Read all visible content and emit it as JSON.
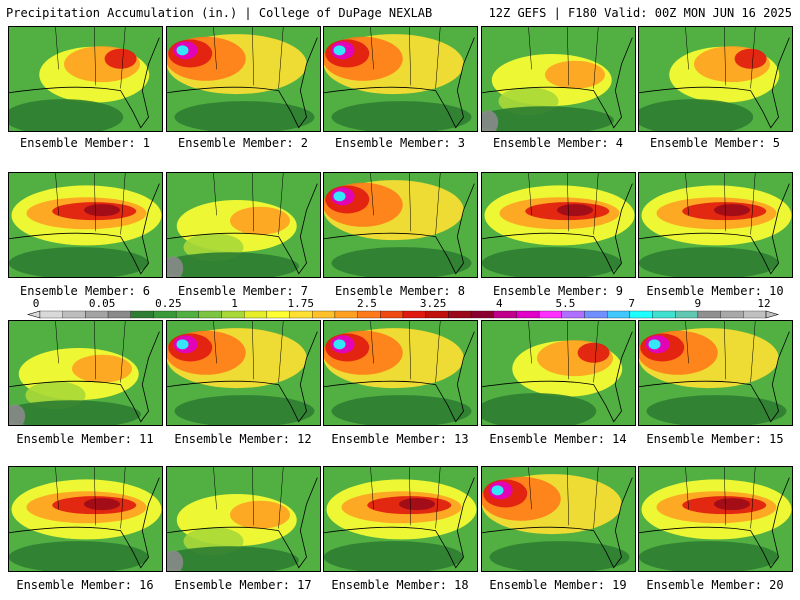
{
  "header": {
    "left": "Precipitation Accumulation (in.) | College of DuPage NEXLAB",
    "right": "12Z GEFS | F180 Valid: 00Z MON JUN 16 2025"
  },
  "member_label_prefix": "Ensemble Member:",
  "members": [
    {
      "n": "1",
      "theme": "wet-ne"
    },
    {
      "n": "2",
      "theme": "wet-nw"
    },
    {
      "n": "3",
      "theme": "wet-nw"
    },
    {
      "n": "4",
      "theme": "mixed"
    },
    {
      "n": "5",
      "theme": "wet-ne"
    },
    {
      "n": "6",
      "theme": "wet-band"
    },
    {
      "n": "7",
      "theme": "mixed"
    },
    {
      "n": "8",
      "theme": "wet-nw"
    },
    {
      "n": "9",
      "theme": "wet-band"
    },
    {
      "n": "10",
      "theme": "wet-band"
    },
    {
      "n": "11",
      "theme": "mixed"
    },
    {
      "n": "12",
      "theme": "wet-nw"
    },
    {
      "n": "13",
      "theme": "wet-nw"
    },
    {
      "n": "14",
      "theme": "wet-ne"
    },
    {
      "n": "15",
      "theme": "wet-nw"
    },
    {
      "n": "16",
      "theme": "wet-band"
    },
    {
      "n": "17",
      "theme": "mixed"
    },
    {
      "n": "18",
      "theme": "wet-band"
    },
    {
      "n": "19",
      "theme": "wet-nw"
    },
    {
      "n": "20",
      "theme": "wet-band"
    }
  ],
  "legend": {
    "ticks": [
      "0",
      "0.05",
      "0.25",
      "1",
      "1.75",
      "2.5",
      "3.25",
      "4",
      "5.5",
      "7",
      "9",
      "12"
    ],
    "colors": [
      "#d9d9d9",
      "#bdbdbd",
      "#a3a3a3",
      "#8a8a8a",
      "#2e7d32",
      "#3a9a3a",
      "#52b043",
      "#7dc540",
      "#a8d838",
      "#e6ee2a",
      "#ffff33",
      "#ffe033",
      "#ffc12a",
      "#ffa021",
      "#ff7a1a",
      "#f04a14",
      "#e01a10",
      "#c0100c",
      "#9a0a1a",
      "#8a0030",
      "#c0008a",
      "#e000c8",
      "#ff30ff",
      "#b070ff",
      "#7090ff",
      "#40c8ff",
      "#20ffff",
      "#40e0d0",
      "#60c8b0",
      "#909090",
      "#a8a8a8",
      "#c0c0c0"
    ]
  }
}
